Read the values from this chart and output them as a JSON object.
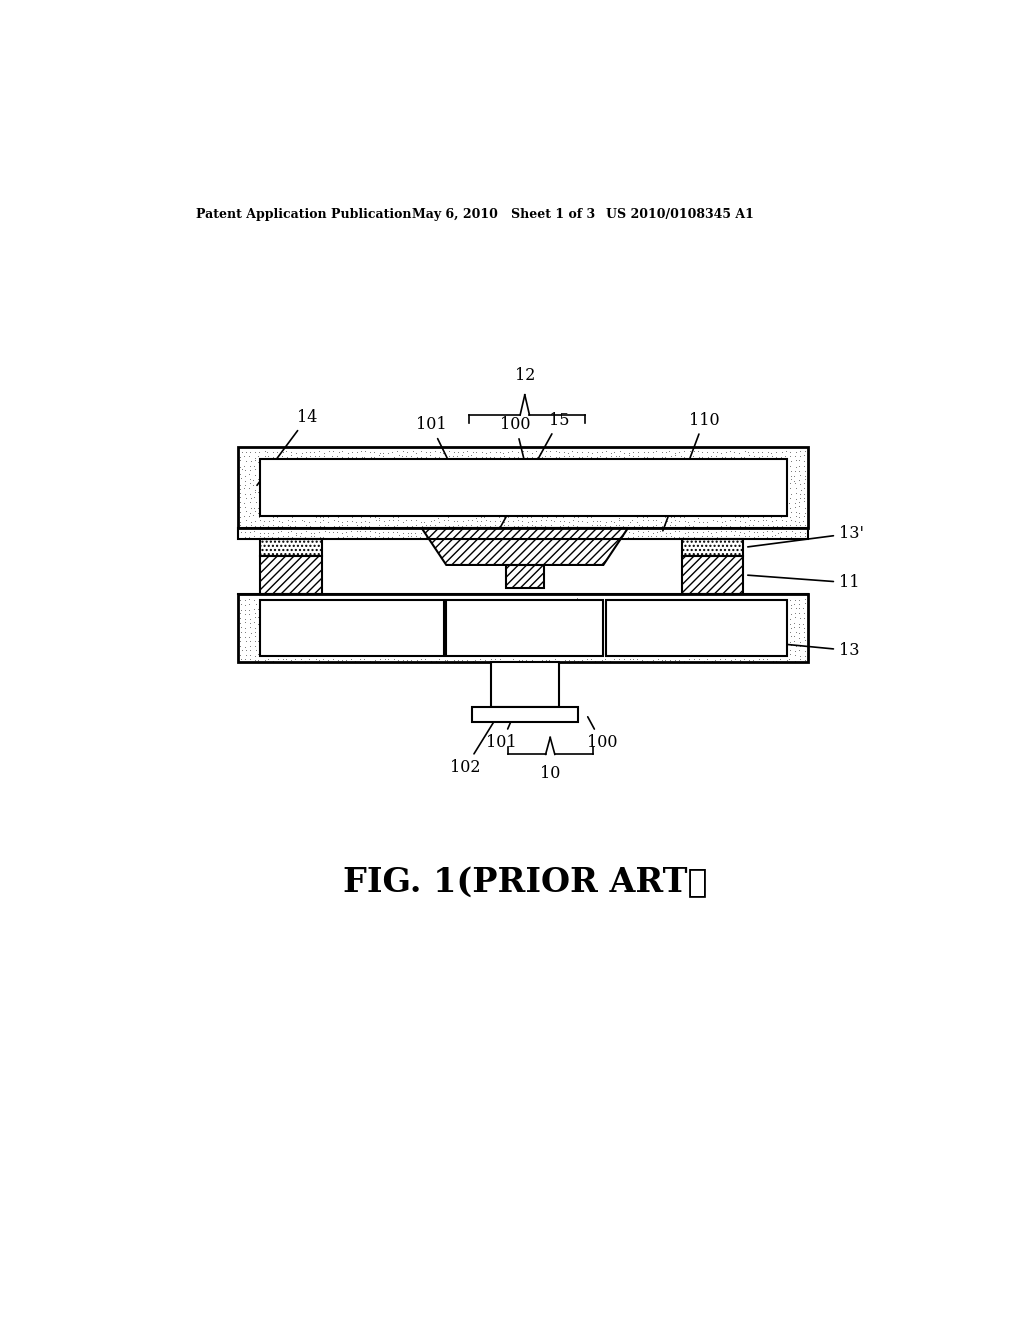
{
  "title_left": "Patent Application Publication",
  "title_mid": "May 6, 2010   Sheet 1 of 3",
  "title_right": "US 2010/0108345 A1",
  "fig_label": "FIG. 1(PRIOR ART）",
  "bg_color": "#ffffff",
  "line_color": "#000000"
}
